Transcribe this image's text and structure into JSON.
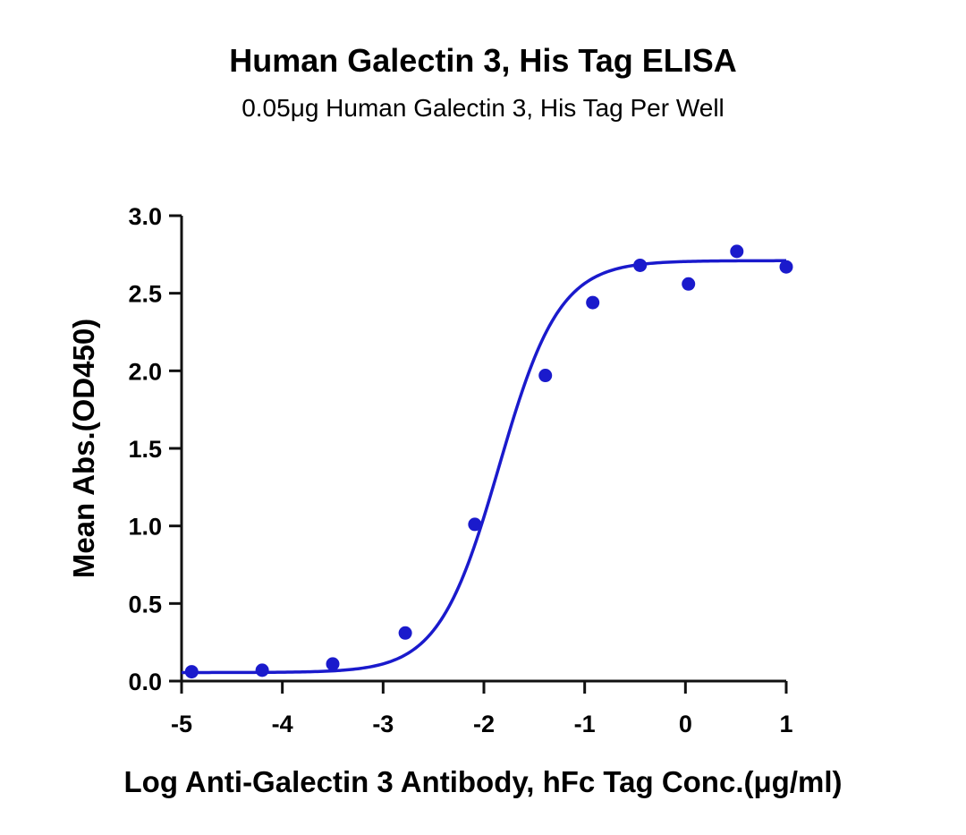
{
  "chart_data": {
    "type": "scatter",
    "title": "Human Galectin 3, His Tag ELISA",
    "subtitle": "0.05μg Human Galectin 3, His Tag Per Well",
    "xlabel": "Log Anti-Galectin 3 Antibody, hFc Tag Conc.(μg/ml)",
    "ylabel": "Mean Abs.(OD450)",
    "xlim": [
      -5,
      1
    ],
    "ylim": [
      0,
      3
    ],
    "x_ticks": [
      "-5",
      "-4",
      "-3",
      "-2",
      "-1",
      "0",
      "1"
    ],
    "y_ticks": [
      "0.0",
      "0.5",
      "1.0",
      "1.5",
      "2.0",
      "2.5",
      "3.0"
    ],
    "grid": false,
    "legend": "none",
    "series": [
      {
        "points": [
          {
            "x": -4.9,
            "y": 0.06
          },
          {
            "x": -4.2,
            "y": 0.07
          },
          {
            "x": -3.5,
            "y": 0.11
          },
          {
            "x": -2.78,
            "y": 0.31
          },
          {
            "x": -2.09,
            "y": 1.01
          },
          {
            "x": -1.39,
            "y": 1.97
          },
          {
            "x": -0.92,
            "y": 2.44
          },
          {
            "x": -0.45,
            "y": 2.68
          },
          {
            "x": 0.03,
            "y": 2.56
          },
          {
            "x": 0.51,
            "y": 2.77
          },
          {
            "x": 1.0,
            "y": 2.67
          }
        ],
        "fit": {
          "model": "4PL",
          "bottom": 0.055,
          "top": 2.71,
          "log_ec50": -1.85,
          "hill_slope": 1.45
        },
        "color": "#1a1acc"
      }
    ]
  }
}
